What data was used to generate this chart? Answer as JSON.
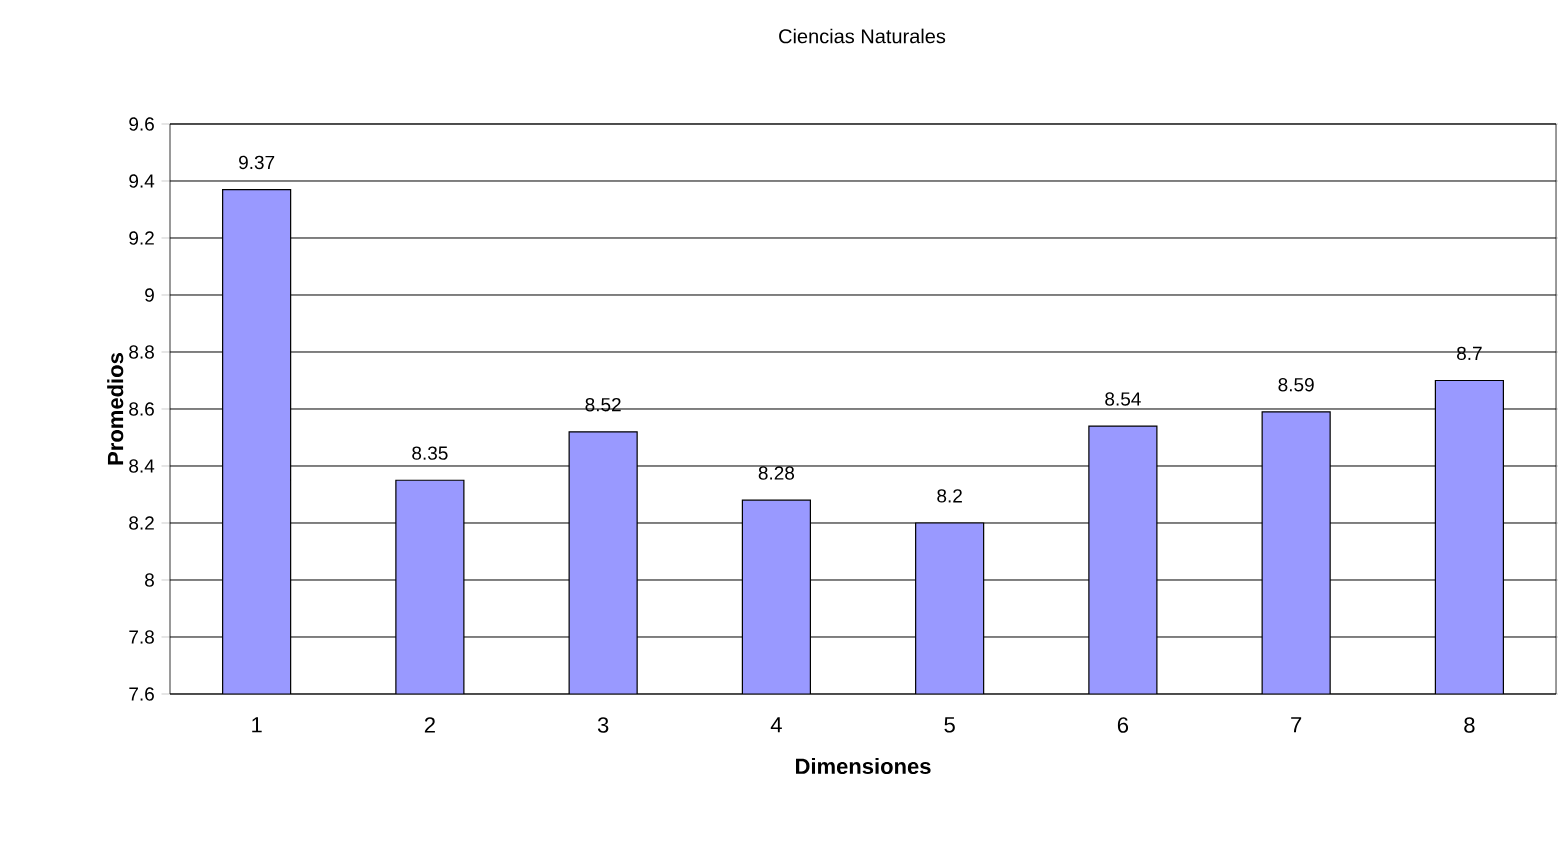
{
  "chart_data": {
    "type": "bar",
    "title": "Ciencias Naturales",
    "xlabel": "Dimensiones",
    "ylabel": "Promedios",
    "categories": [
      "1",
      "2",
      "3",
      "4",
      "5",
      "6",
      "7",
      "8"
    ],
    "values": [
      9.37,
      8.35,
      8.52,
      8.28,
      8.2,
      8.54,
      8.59,
      8.7
    ],
    "color": "#9999ff",
    "data_labels": true,
    "grid": "y",
    "ylim": [
      7.6,
      9.6
    ],
    "yticks": [
      7.6,
      7.8,
      8,
      8.2,
      8.4,
      8.6,
      8.8,
      9,
      9.2,
      9.4,
      9.6
    ]
  }
}
